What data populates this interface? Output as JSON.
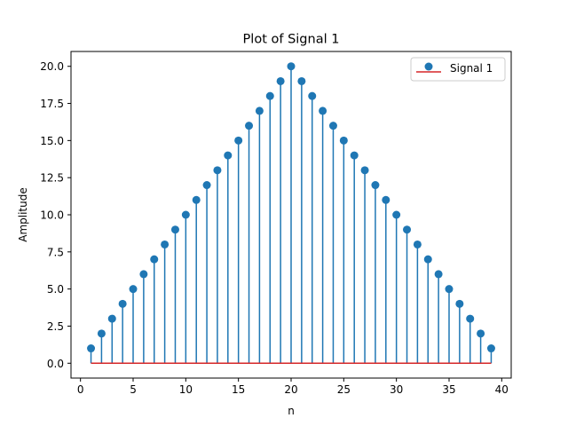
{
  "chart_data": {
    "type": "stem",
    "title": "Plot of Signal 1",
    "xlabel": "n",
    "ylabel": "Amplitude",
    "xlim": [
      -0.9,
      40.9
    ],
    "ylim": [
      -1.0,
      21.0
    ],
    "xticks": [
      0,
      5,
      10,
      15,
      20,
      25,
      30,
      35,
      40
    ],
    "xtick_labels": [
      "0",
      "5",
      "10",
      "15",
      "20",
      "25",
      "30",
      "35",
      "40"
    ],
    "yticks": [
      0,
      2.5,
      5,
      7.5,
      10,
      12.5,
      15,
      17.5,
      20
    ],
    "ytick_labels": [
      "0.0",
      "2.5",
      "5.0",
      "7.5",
      "10.0",
      "12.5",
      "15.0",
      "17.5",
      "20.0"
    ],
    "grid": false,
    "legend_position": "top-right",
    "colors": {
      "stem": "#1f77b4",
      "baseline": "#d62728"
    },
    "series": [
      {
        "name": "Signal 1",
        "x": [
          1,
          2,
          3,
          4,
          5,
          6,
          7,
          8,
          9,
          10,
          11,
          12,
          13,
          14,
          15,
          16,
          17,
          18,
          19,
          20,
          21,
          22,
          23,
          24,
          25,
          26,
          27,
          28,
          29,
          30,
          31,
          32,
          33,
          34,
          35,
          36,
          37,
          38,
          39
        ],
        "values": [
          1,
          2,
          3,
          4,
          5,
          6,
          7,
          8,
          9,
          10,
          11,
          12,
          13,
          14,
          15,
          16,
          17,
          18,
          19,
          20,
          19,
          18,
          17,
          16,
          15,
          14,
          13,
          12,
          11,
          10,
          9,
          8,
          7,
          6,
          5,
          4,
          3,
          2,
          1
        ]
      }
    ]
  }
}
